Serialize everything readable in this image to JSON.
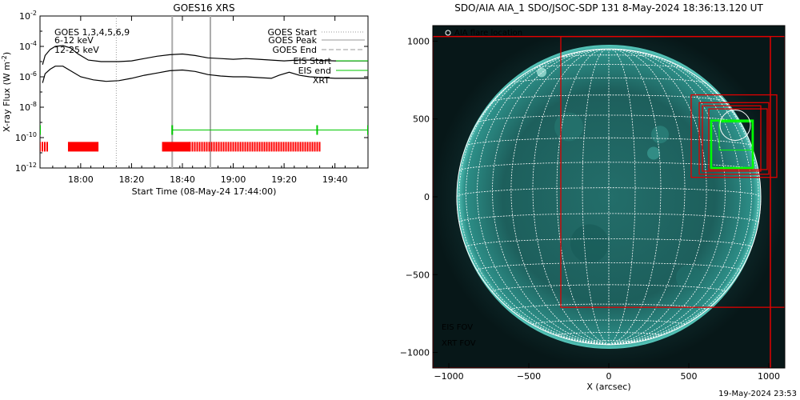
{
  "chart_data": [
    {
      "type": "line",
      "title": "GOES16 XRS",
      "xlabel": "Start Time (08-May-24 17:44:00)",
      "ylabel": "X-ray Flux (W m",
      "ylabel_sup": "-2",
      "ylabel_close": ")",
      "y_scale": "log",
      "y_ticks": [
        {
          "base": "10",
          "exp": "-2"
        },
        {
          "base": "10",
          "exp": "-4"
        },
        {
          "base": "10",
          "exp": "-6"
        },
        {
          "base": "10",
          "exp": "-8"
        },
        {
          "base": "10",
          "exp": "-10"
        },
        {
          "base": "10",
          "exp": "-12"
        }
      ],
      "x_tick_labels": [
        "18:00",
        "18:20",
        "18:40",
        "19:00",
        "19:20",
        "19:40"
      ],
      "x_ticks": [
        "2024-05-08T18:00",
        "2024-05-08T18:20",
        "2024-05-08T18:40",
        "2024-05-08T19:00",
        "2024-05-08T19:20",
        "2024-05-08T19:40"
      ],
      "xlim": [
        "2024-05-08T17:44",
        "2024-05-08T19:53"
      ],
      "ylim_exp": [
        -12,
        -2
      ],
      "channels_label": "GOES 1,3,4,5,6,9",
      "legend_left": [
        {
          "label": "6-12 keV",
          "color": "#d400d4"
        },
        {
          "label": "12-25 keV",
          "color": "#00c800"
        }
      ],
      "series": [
        {
          "name": "",
          "color": "#000000",
          "x": [
            "2024-05-08T17:45",
            "2024-05-08T17:46",
            "2024-05-08T17:48",
            "2024-05-08T17:50",
            "2024-05-08T17:53",
            "2024-05-08T17:56",
            "2024-05-08T17:59",
            "2024-05-08T18:03",
            "2024-05-08T18:08",
            "2024-05-08T18:15",
            "2024-05-08T18:20",
            "2024-05-08T18:25",
            "2024-05-08T18:30",
            "2024-05-08T18:35",
            "2024-05-08T18:40",
            "2024-05-08T18:45",
            "2024-05-08T18:50",
            "2024-05-08T18:55",
            "2024-05-08T19:00",
            "2024-05-08T19:05",
            "2024-05-08T19:10",
            "2024-05-08T19:15",
            "2024-05-08T19:20",
            "2024-05-08T19:25",
            "2024-05-08T19:30",
            "2024-05-08T19:40",
            "2024-05-08T19:53"
          ],
          "y_exp": [
            -5.2,
            -4.6,
            -4.2,
            -4.0,
            -3.95,
            -4.1,
            -4.5,
            -4.9,
            -5.0,
            -5.0,
            -4.95,
            -4.8,
            -4.65,
            -4.55,
            -4.5,
            -4.6,
            -4.75,
            -4.8,
            -4.85,
            -4.8,
            -4.85,
            -4.9,
            -4.95,
            -4.9,
            -4.9,
            -4.95,
            -4.95
          ]
        },
        {
          "name": "",
          "color": "#000000",
          "x": [
            "2024-05-08T17:45",
            "2024-05-08T17:46",
            "2024-05-08T17:48",
            "2024-05-08T17:50",
            "2024-05-08T17:53",
            "2024-05-08T17:56",
            "2024-05-08T18:00",
            "2024-05-08T18:05",
            "2024-05-08T18:10",
            "2024-05-08T18:15",
            "2024-05-08T18:20",
            "2024-05-08T18:25",
            "2024-05-08T18:30",
            "2024-05-08T18:35",
            "2024-05-08T18:40",
            "2024-05-08T18:45",
            "2024-05-08T18:50",
            "2024-05-08T18:55",
            "2024-05-08T19:00",
            "2024-05-08T19:05",
            "2024-05-08T19:10",
            "2024-05-08T19:15",
            "2024-05-08T19:18",
            "2024-05-08T19:22",
            "2024-05-08T19:26",
            "2024-05-08T19:30",
            "2024-05-08T19:40",
            "2024-05-08T19:53"
          ],
          "y_exp": [
            -6.4,
            -5.8,
            -5.5,
            -5.3,
            -5.3,
            -5.6,
            -6.0,
            -6.2,
            -6.3,
            -6.25,
            -6.1,
            -5.9,
            -5.75,
            -5.6,
            -5.55,
            -5.65,
            -5.85,
            -5.95,
            -6.0,
            -6.0,
            -6.05,
            -6.1,
            -5.9,
            -5.7,
            -5.9,
            -6.0,
            -6.1,
            -6.1
          ]
        }
      ],
      "vlines": [
        {
          "name": "GOES Start",
          "x": "2024-05-08T18:14",
          "color": "#999999",
          "style": "dotted"
        },
        {
          "name": "",
          "x": "2024-05-08T18:36",
          "color": "#aaaaaa",
          "style": "solid"
        },
        {
          "name": "",
          "x": "2024-05-08T18:51",
          "color": "#aaaaaa",
          "style": "solid"
        }
      ],
      "legend_right": [
        {
          "label": "GOES Start",
          "color": "#999999",
          "style": "dotted"
        },
        {
          "label": "GOES Peak",
          "color": "#999999",
          "style": "solid"
        },
        {
          "label": "GOES End",
          "color": "#999999",
          "style": "dashed"
        },
        {
          "label": "EIS Start",
          "color": "#00c800",
          "style": "solid"
        },
        {
          "label": "EIS end",
          "color": "#00c800",
          "style": "solid"
        },
        {
          "label": "XRT",
          "color": "#ff0000",
          "style": "solid"
        }
      ],
      "eis_line": {
        "x_start": "2024-05-08T18:36",
        "x_end": "2024-05-08T19:53",
        "y_exp": -9.5,
        "marks": [
          "2024-05-08T17:44",
          "2024-05-08T18:36",
          "2024-05-08T19:33",
          "2024-05-08T19:53"
        ]
      },
      "xrt_blocks": [
        {
          "x_start": "2024-05-08T17:44",
          "x_end": "2024-05-08T17:47",
          "y_exp": -10.6,
          "style": "dense"
        },
        {
          "x_start": "2024-05-08T17:55",
          "x_end": "2024-05-08T18:07",
          "y_exp": -10.6,
          "style": "solid"
        },
        {
          "x_start": "2024-05-08T18:32",
          "x_end": "2024-05-08T18:43",
          "y_exp": -10.6,
          "style": "solid"
        },
        {
          "x_start": "2024-05-08T18:43",
          "x_end": "2024-05-08T19:34",
          "y_exp": -10.6,
          "style": "dense"
        }
      ],
      "colors": {
        "axes": "#000000",
        "eis": "#00c800",
        "xrt": "#ff0000",
        "grey": "#999999"
      }
    },
    {
      "type": "image",
      "title": "SDO/AIA AIA_1 SDO/JSOC-SDP 131  8-May-2024 18:36:13.120 UT",
      "xlabel": "X (arcsec)",
      "ylabel": "",
      "xlim": [
        -1100,
        1100
      ],
      "ylim": [
        -1100,
        1100
      ],
      "x_ticks": [
        -1000,
        -500,
        0,
        500,
        1000
      ],
      "y_ticks": [
        -1000,
        -500,
        0,
        500,
        1000
      ],
      "x_tick_labels": [
        "−1000",
        "−500",
        "0",
        "500",
        "1000"
      ],
      "y_tick_labels": [
        "−1000",
        "−500",
        "0",
        "500",
        "1000"
      ],
      "solar_radius": 950,
      "grid": true,
      "flare_legend": "AIA flare location",
      "flare_location": [
        790,
        460
      ],
      "flare_circle_radius": 95,
      "fov_legend": [
        {
          "label": "EIS FOV",
          "color": "#00ff00"
        },
        {
          "label": "XRT FOV",
          "color": "#ff0000"
        }
      ],
      "red_boxes": [
        {
          "x": [
            -1100,
            1010
          ],
          "y": [
            -1100,
            1030
          ]
        },
        {
          "x": [
            -1100,
            1010
          ],
          "y": [
            -1100,
            1030
          ]
        },
        {
          "x": [
            -300,
            1100
          ],
          "y": [
            -710,
            1030
          ]
        },
        {
          "x": [
            515,
            1050
          ],
          "y": [
            125,
            655
          ]
        },
        {
          "x": [
            565,
            1000
          ],
          "y": [
            145,
            605
          ]
        },
        {
          "x": [
            585,
            950
          ],
          "y": [
            165,
            585
          ]
        },
        {
          "x": [
            625,
            990
          ],
          "y": [
            175,
            565
          ]
        }
      ],
      "green_boxes": [
        {
          "x": [
            640,
            900
          ],
          "y": [
            185,
            490
          ]
        },
        {
          "x": [
            690,
            895
          ],
          "y": [
            300,
            480
          ]
        }
      ],
      "colors": {
        "disk": "#1f6b6b",
        "corona": "#0a2a2c",
        "grid": "#ffffff",
        "bright": "#8ef0e0"
      }
    }
  ],
  "footer": {
    "timestamp": "19-May-2024 23:53"
  }
}
